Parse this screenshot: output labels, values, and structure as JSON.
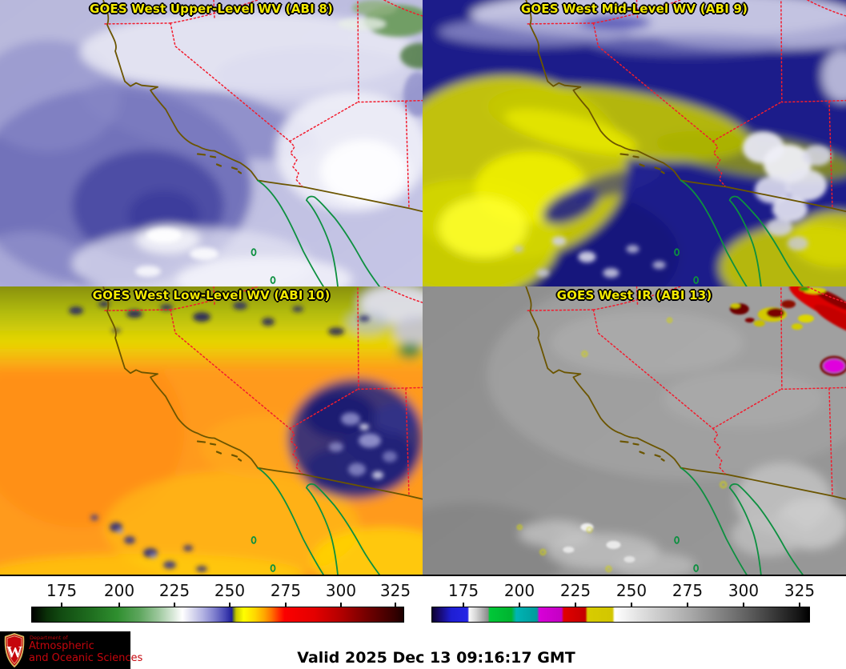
{
  "panels": [
    {
      "title": "GOES West Upper-Level WV (ABI 8)"
    },
    {
      "title": "GOES West Mid-Level WV (ABI 9)"
    },
    {
      "title": "GOES West Low-Level WV (ABI 10)"
    },
    {
      "title": "GOES West IR (ABI 13)"
    }
  ],
  "colorbars": {
    "left": {
      "ticks": [
        "175",
        "200",
        "225",
        "250",
        "275",
        "300",
        "325"
      ],
      "gradient_stops": [
        [
          "0%",
          "#000000"
        ],
        [
          "4%",
          "#0a3008"
        ],
        [
          "8%",
          "#124c12"
        ],
        [
          "16%",
          "#1f6e1f"
        ],
        [
          "23%",
          "#2f8f2f"
        ],
        [
          "29%",
          "#5ea65e"
        ],
        [
          "34%",
          "#9cc79c"
        ],
        [
          "38%",
          "#d8e8d8"
        ],
        [
          "40.5%",
          "#ffffff"
        ],
        [
          "43%",
          "#dcdcf0"
        ],
        [
          "46%",
          "#b2b2e2"
        ],
        [
          "49%",
          "#8181ce"
        ],
        [
          "52%",
          "#4747b4"
        ],
        [
          "53.8%",
          "#1f1f9a"
        ],
        [
          "54.3%",
          "#6a7a28"
        ],
        [
          "55%",
          "#c8c800"
        ],
        [
          "57%",
          "#ffff00"
        ],
        [
          "60%",
          "#ffd800"
        ],
        [
          "62.5%",
          "#ffa800"
        ],
        [
          "64.5%",
          "#ff7300"
        ],
        [
          "66.5%",
          "#ff2e00"
        ],
        [
          "68%",
          "#fb0000"
        ],
        [
          "76%",
          "#e40000"
        ],
        [
          "83%",
          "#b40000"
        ],
        [
          "90%",
          "#750000"
        ],
        [
          "97.5%",
          "#370000"
        ],
        [
          "100%",
          "#1c0000"
        ]
      ]
    },
    "right": {
      "ticks": [
        "175",
        "200",
        "225",
        "250",
        "275",
        "300",
        "325"
      ],
      "gradient_stops": [
        [
          "0%",
          "#0c0030"
        ],
        [
          "2%",
          "#170a70"
        ],
        [
          "5%",
          "#1e1ed2"
        ],
        [
          "9%",
          "#2424e4"
        ],
        [
          "9.4%",
          "#2424e4"
        ],
        [
          "9.8%",
          "#f8f8f8"
        ],
        [
          "11.5%",
          "#d8d8d8"
        ],
        [
          "14.8%",
          "#8c8c8c"
        ],
        [
          "15.2%",
          "#00c838"
        ],
        [
          "21%",
          "#00b430"
        ],
        [
          "22.3%",
          "#00b4b4"
        ],
        [
          "27.8%",
          "#009c9c"
        ],
        [
          "28.4%",
          "#d800d8"
        ],
        [
          "34.3%",
          "#c400c4"
        ],
        [
          "34.9%",
          "#e00000"
        ],
        [
          "40.6%",
          "#c40000"
        ],
        [
          "41.2%",
          "#d8cc00"
        ],
        [
          "47.8%",
          "#d2c600"
        ],
        [
          "48.4%",
          "#ffffff"
        ],
        [
          "55%",
          "#e0e0e0"
        ],
        [
          "68%",
          "#ababab"
        ],
        [
          "83%",
          "#636363"
        ],
        [
          "97%",
          "#161616"
        ],
        [
          "100%",
          "#000000"
        ]
      ]
    }
  },
  "footer": {
    "valid_text": "Valid 2025 Dec 13 09:16:17 GMT"
  },
  "logo": {
    "dept_small": "Department of",
    "dept_line1": "Atmospheric",
    "dept_line2": "and Oceanic Sciences",
    "crest_letter": "W",
    "crest_color": "#c5050c"
  },
  "colors": {
    "panel_title_text": "#f4ea00",
    "state_borders": "#f21c2e",
    "coastline": "#6b5500",
    "mexico_coast": "#0d9040",
    "valid_text": "#000000"
  }
}
